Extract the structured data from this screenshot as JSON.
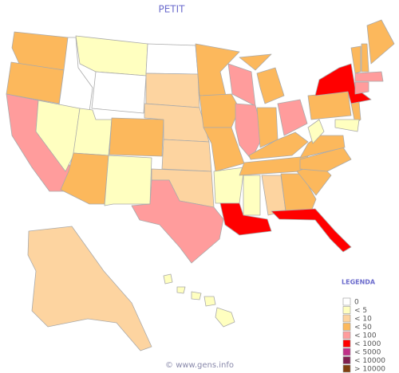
{
  "title": "PETIT",
  "legend": {
    "title": "LEGENDA",
    "items": [
      {
        "label": "0",
        "color": "#ffffff"
      },
      {
        "label": "< 5",
        "color": "#ffffc0"
      },
      {
        "label": "< 10",
        "color": "#fdd4a0"
      },
      {
        "label": "< 50",
        "color": "#fcb85c"
      },
      {
        "label": "< 100",
        "color": "#ff9c9c"
      },
      {
        "label": "< 1000",
        "color": "#ff0000"
      },
      {
        "label": "< 5000",
        "color": "#c03088"
      },
      {
        "label": "< 10000",
        "color": "#802050"
      },
      {
        "label": "> 10000",
        "color": "#804010"
      }
    ]
  },
  "footer": "© www.gens.info"
}
